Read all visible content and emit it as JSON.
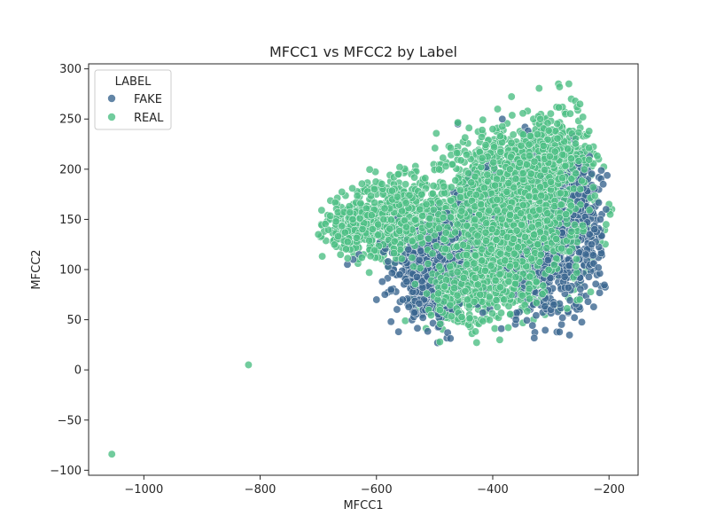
{
  "chart_data": {
    "type": "scatter",
    "title": "MFCC1 vs MFCC2 by Label",
    "xlabel": "MFCC1",
    "ylabel": "MFCC2",
    "xlim": [
      -1095,
      -150
    ],
    "ylim": [
      -105,
      305
    ],
    "xticks": [
      -1000,
      -800,
      -600,
      -400,
      -200
    ],
    "yticks": [
      -100,
      -50,
      0,
      50,
      100,
      150,
      200,
      250,
      300
    ],
    "xtick_labels": [
      "−1000",
      "−800",
      "−600",
      "−400",
      "−200"
    ],
    "ytick_labels": [
      "−100",
      "−50",
      "0",
      "50",
      "100",
      "150",
      "200",
      "250",
      "300"
    ],
    "grid": false,
    "legend": {
      "title": "LABEL",
      "placement": "top-left"
    },
    "series": [
      {
        "name": "FAKE",
        "color": "#3b6790",
        "clusters": [
          {
            "cx": -505,
            "cy": 100,
            "sx": 30,
            "sy": 22,
            "n": 700
          },
          {
            "cx": -330,
            "cy": 130,
            "sx": 60,
            "sy": 40,
            "n": 500
          },
          {
            "cx": -250,
            "cy": 150,
            "sx": 18,
            "sy": 30,
            "n": 180
          },
          {
            "cx": -300,
            "cy": 95,
            "sx": 25,
            "sy": 20,
            "n": 120
          }
        ],
        "points": [
          [
            -575,
            48
          ],
          [
            -562,
            38
          ],
          [
            -495,
            27
          ],
          [
            -535,
            57
          ],
          [
            -520,
            52
          ],
          [
            -640,
            110
          ],
          [
            -650,
            105
          ],
          [
            -630,
            115
          ],
          [
            -580,
            108
          ],
          [
            -590,
            88
          ],
          [
            -600,
            70
          ],
          [
            -575,
            80
          ],
          [
            -555,
            70
          ],
          [
            -460,
            245
          ],
          [
            -415,
            80
          ],
          [
            -360,
            50
          ],
          [
            -330,
            65
          ],
          [
            -300,
            60
          ],
          [
            -280,
            52
          ],
          [
            -315,
            75
          ],
          [
            -210,
            185
          ],
          [
            -205,
            160
          ],
          [
            -225,
            140
          ],
          [
            -230,
            125
          ],
          [
            -240,
            115
          ],
          [
            -250,
            92
          ],
          [
            -262,
            128
          ],
          [
            -270,
            82
          ],
          [
            -285,
            66
          ],
          [
            -295,
            65
          ],
          [
            -275,
            175
          ],
          [
            -225,
            180
          ],
          [
            -215,
            150
          ],
          [
            -440,
            65
          ],
          [
            -470,
            60
          ],
          [
            -560,
            95
          ],
          [
            -548,
            88
          ],
          [
            -545,
            120
          ],
          [
            -470,
            130
          ],
          [
            -485,
            75
          ]
        ]
      },
      {
        "name": "REAL",
        "color": "#4dbf84",
        "clusters": [
          {
            "cx": -360,
            "cy": 165,
            "sx": 55,
            "sy": 35,
            "n": 2200
          },
          {
            "cx": -560,
            "cy": 150,
            "sx": 45,
            "sy": 20,
            "n": 700
          },
          {
            "cx": -400,
            "cy": 105,
            "sx": 40,
            "sy": 22,
            "n": 600
          },
          {
            "cx": -470,
            "cy": 75,
            "sx": 30,
            "sy": 15,
            "n": 200
          },
          {
            "cx": -300,
            "cy": 215,
            "sx": 35,
            "sy": 15,
            "n": 300
          },
          {
            "cx": -640,
            "cy": 140,
            "sx": 25,
            "sy": 12,
            "n": 150
          }
        ],
        "points": [
          [
            -1055,
            -84
          ],
          [
            -820,
            5
          ],
          [
            -695,
            133
          ],
          [
            -690,
            138
          ],
          [
            -685,
            148
          ],
          [
            -680,
            150
          ],
          [
            -675,
            128
          ],
          [
            -670,
            145
          ],
          [
            -665,
            132
          ],
          [
            -660,
            155
          ],
          [
            -655,
            125
          ],
          [
            -650,
            160
          ],
          [
            -645,
            120
          ],
          [
            -640,
            165
          ],
          [
            -560,
            202
          ],
          [
            -540,
            195
          ],
          [
            -520,
            190
          ],
          [
            -460,
            246
          ],
          [
            -400,
            240
          ],
          [
            -340,
            258
          ],
          [
            -330,
            250
          ],
          [
            -320,
            245
          ],
          [
            -310,
            240
          ],
          [
            -300,
            248
          ],
          [
            -290,
            262
          ],
          [
            -287,
            285
          ],
          [
            -285,
            282
          ],
          [
            -280,
            262
          ],
          [
            -275,
            255
          ],
          [
            -265,
            270
          ],
          [
            -258,
            268
          ],
          [
            -255,
            262
          ],
          [
            -250,
            265
          ],
          [
            -245,
            252
          ],
          [
            -262,
            238
          ],
          [
            -255,
            210
          ],
          [
            -250,
            195
          ],
          [
            -240,
            188
          ],
          [
            -230,
            180
          ],
          [
            -220,
            168
          ],
          [
            -200,
            165
          ],
          [
            -198,
            155
          ],
          [
            -205,
            145
          ],
          [
            -215,
            128
          ],
          [
            -230,
            110
          ],
          [
            -240,
            98
          ],
          [
            -250,
            85
          ],
          [
            -260,
            80
          ],
          [
            -270,
            72
          ],
          [
            -290,
            65
          ],
          [
            -310,
            55
          ],
          [
            -330,
            50
          ],
          [
            -350,
            60
          ],
          [
            -370,
            55
          ],
          [
            -390,
            52
          ],
          [
            -420,
            50
          ],
          [
            -440,
            55
          ],
          [
            -460,
            48
          ],
          [
            -480,
            52
          ],
          [
            -500,
            58
          ],
          [
            -520,
            62
          ],
          [
            -540,
            70
          ],
          [
            -600,
            118
          ],
          [
            -610,
            125
          ],
          [
            -620,
            130
          ],
          [
            -600,
            175
          ],
          [
            -590,
            178
          ],
          [
            -580,
            170
          ],
          [
            -570,
            192
          ],
          [
            -550,
            185
          ],
          [
            -530,
            175
          ],
          [
            -700,
            135
          ]
        ]
      }
    ]
  }
}
